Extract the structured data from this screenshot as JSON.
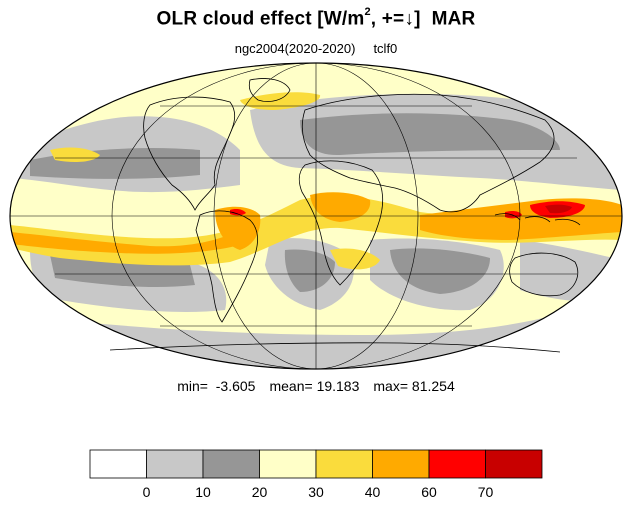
{
  "title": {
    "prefix": "OLR cloud effect [W/m",
    "superscript": "2",
    "sign_text": ", +=",
    "arrow": "↓",
    "bracket_close": "]",
    "month": "MAR"
  },
  "subtitle": {
    "run": "ngc2004(2020-2020)",
    "variable": "tclf0"
  },
  "stats": {
    "min_label": "min=",
    "min_value": "-3.605",
    "mean_label": "mean=",
    "mean_value": "19.183",
    "max_label": "max=",
    "max_value": "81.254"
  },
  "colorbar": {
    "colors": [
      "#ffffff",
      "#c8c8c8",
      "#969696",
      "#ffffc8",
      "#fadc3c",
      "#ffaa00",
      "#ff0000",
      "#c80000"
    ],
    "tick_labels": [
      "0",
      "10",
      "20",
      "30",
      "40",
      "60",
      "70"
    ]
  },
  "map": {
    "projection": "Mollweide",
    "ocean_base_color": "#c8c8c8",
    "coastline_color": "#000000",
    "graticule_color": "#000000"
  }
}
